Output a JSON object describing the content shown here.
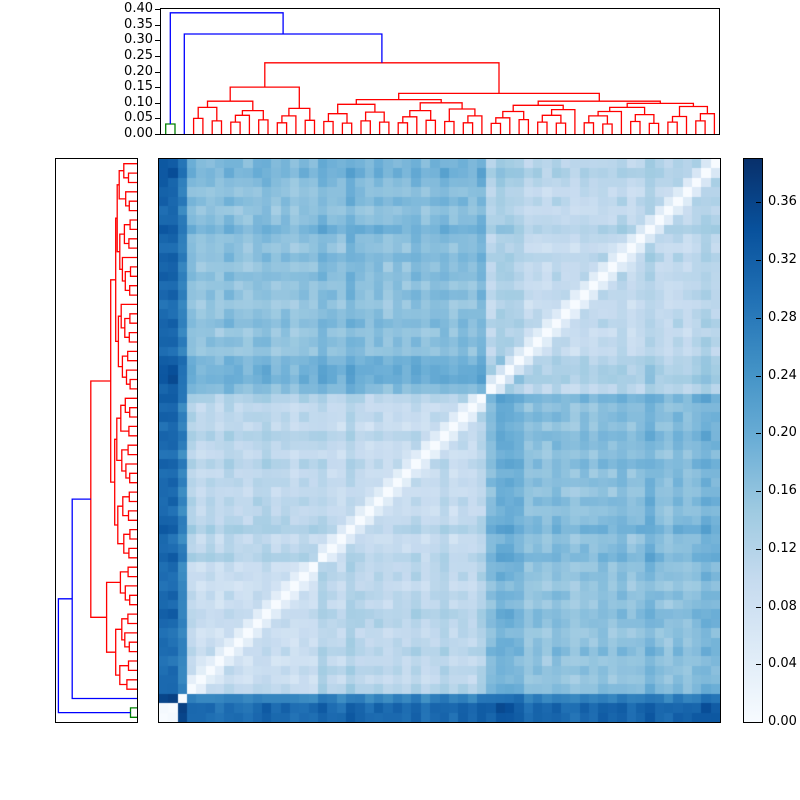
{
  "figure": {
    "background": "#ffffff",
    "frame_color": "#000000"
  },
  "top_dendrogram": {
    "axis_ticks": [
      {
        "label": "0.40",
        "value": 0.4
      },
      {
        "label": "0.35",
        "value": 0.35
      },
      {
        "label": "0.30",
        "value": 0.3
      },
      {
        "label": "0.25",
        "value": 0.25
      },
      {
        "label": "0.20",
        "value": 0.2
      },
      {
        "label": "0.15",
        "value": 0.15
      },
      {
        "label": "0.10",
        "value": 0.1
      },
      {
        "label": "0.05",
        "value": 0.05
      },
      {
        "label": "0.00",
        "value": 0.0
      }
    ],
    "axis_max": 0.4
  },
  "left_dendrogram": {
    "axis_max": 0.4,
    "axis_ticks_visible": false
  },
  "colorbar": {
    "vmin": 0.0,
    "vmax": 0.39,
    "colormap": "Blues",
    "ticks": [
      {
        "label": "0.36",
        "value": 0.36
      },
      {
        "label": "0.32",
        "value": 0.32
      },
      {
        "label": "0.28",
        "value": 0.28
      },
      {
        "label": "0.24",
        "value": 0.24
      },
      {
        "label": "0.20",
        "value": 0.2
      },
      {
        "label": "0.16",
        "value": 0.16
      },
      {
        "label": "0.12",
        "value": 0.12
      },
      {
        "label": "0.08",
        "value": 0.08
      },
      {
        "label": "0.04",
        "value": 0.04
      },
      {
        "label": "0.00",
        "value": 0.0
      }
    ]
  },
  "chart_data": {
    "type": "heatmap",
    "subtype": "hierarchical-clustering-distance-matrix",
    "n_leaves": 60,
    "diagonal": "zero, displayed bottom-left to top-right (origin lower)",
    "link_colors": {
      "r": "#ff0000",
      "g": "#008000",
      "b": "#0000ff"
    },
    "linkage": [
      [
        0,
        1,
        0.032,
        "g"
      ],
      [
        3,
        4,
        0.05,
        "r"
      ],
      [
        5,
        6,
        0.042,
        "r"
      ],
      [
        61,
        62,
        0.085,
        "r"
      ],
      [
        7,
        8,
        0.038,
        "r"
      ],
      [
        9,
        64,
        0.06,
        "r"
      ],
      [
        10,
        11,
        0.045,
        "r"
      ],
      [
        65,
        66,
        0.075,
        "r"
      ],
      [
        63,
        67,
        0.105,
        "r"
      ],
      [
        12,
        13,
        0.036,
        "r"
      ],
      [
        14,
        69,
        0.058,
        "r"
      ],
      [
        15,
        16,
        0.044,
        "r"
      ],
      [
        70,
        71,
        0.082,
        "r"
      ],
      [
        68,
        72,
        0.15,
        "r"
      ],
      [
        17,
        18,
        0.04,
        "r"
      ],
      [
        19,
        20,
        0.035,
        "r"
      ],
      [
        74,
        75,
        0.065,
        "r"
      ],
      [
        21,
        22,
        0.042,
        "r"
      ],
      [
        23,
        24,
        0.038,
        "r"
      ],
      [
        77,
        78,
        0.07,
        "r"
      ],
      [
        76,
        79,
        0.095,
        "r"
      ],
      [
        25,
        26,
        0.036,
        "r"
      ],
      [
        27,
        81,
        0.055,
        "r"
      ],
      [
        28,
        29,
        0.044,
        "r"
      ],
      [
        82,
        83,
        0.075,
        "r"
      ],
      [
        30,
        31,
        0.04,
        "r"
      ],
      [
        32,
        33,
        0.036,
        "r"
      ],
      [
        34,
        86,
        0.058,
        "r"
      ],
      [
        85,
        87,
        0.08,
        "r"
      ],
      [
        84,
        88,
        0.1,
        "r"
      ],
      [
        80,
        89,
        0.11,
        "r"
      ],
      [
        35,
        36,
        0.034,
        "r"
      ],
      [
        37,
        91,
        0.052,
        "r"
      ],
      [
        38,
        39,
        0.046,
        "r"
      ],
      [
        92,
        93,
        0.072,
        "r"
      ],
      [
        40,
        41,
        0.038,
        "r"
      ],
      [
        42,
        43,
        0.035,
        "r"
      ],
      [
        95,
        96,
        0.06,
        "r"
      ],
      [
        44,
        97,
        0.078,
        "r"
      ],
      [
        94,
        98,
        0.092,
        "r"
      ],
      [
        45,
        46,
        0.036,
        "r"
      ],
      [
        47,
        48,
        0.032,
        "r"
      ],
      [
        100,
        101,
        0.058,
        "r"
      ],
      [
        49,
        102,
        0.072,
        "r"
      ],
      [
        50,
        51,
        0.04,
        "r"
      ],
      [
        52,
        53,
        0.034,
        "r"
      ],
      [
        104,
        105,
        0.062,
        "r"
      ],
      [
        103,
        106,
        0.085,
        "r"
      ],
      [
        54,
        55,
        0.038,
        "r"
      ],
      [
        56,
        108,
        0.056,
        "r"
      ],
      [
        57,
        58,
        0.042,
        "r"
      ],
      [
        59,
        110,
        0.065,
        "r"
      ],
      [
        109,
        111,
        0.088,
        "r"
      ],
      [
        107,
        112,
        0.098,
        "r"
      ],
      [
        99,
        113,
        0.105,
        "r"
      ],
      [
        90,
        114,
        0.13,
        "r"
      ],
      [
        73,
        115,
        0.228,
        "r"
      ],
      [
        2,
        116,
        0.32,
        "b"
      ],
      [
        60,
        117,
        0.388,
        "b"
      ]
    ],
    "heatmap_model": {
      "comment": "distance D[i][j] = base(group_i,group_j) + offset_i + offset_j + noise; diag 0",
      "groups": [
        [
          0,
          1,
          "g"
        ],
        [
          2,
          2,
          "s"
        ],
        [
          3,
          16,
          "a1"
        ],
        [
          17,
          34,
          "a2"
        ],
        [
          35,
          59,
          "b"
        ]
      ],
      "base": {
        "g|g": 0.012,
        "g|s": 0.37,
        "g|a1": 0.3,
        "g|a2": 0.3,
        "g|b": 0.305,
        "s|s": 0.0,
        "s|a1": 0.26,
        "s|a2": 0.26,
        "s|b": 0.265,
        "a1|a1": 0.085,
        "a1|a2": 0.105,
        "a1|b": 0.155,
        "a2|a2": 0.09,
        "a2|b": 0.16,
        "b|b": 0.095
      },
      "offsets": [
        0,
        0,
        0,
        0.01,
        -0.005,
        0.004,
        -0.008,
        0.012,
        0,
        -0.006,
        0.008,
        0.015,
        -0.004,
        0.006,
        -0.01,
        0.005,
        -0.002,
        0.018,
        0.004,
        -0.006,
        0.025,
        0.008,
        -0.004,
        0.01,
        -0.008,
        0.006,
        -0.002,
        0.012,
        -0.006,
        0.004,
        0.016,
        -0.004,
        0.008,
        0,
        0.02,
        0.01,
        0.035,
        0.03,
        0.025,
        -0.004,
        0.008,
        -0.006,
        0.012,
        0,
        -0.008,
        0.006,
        -0.004,
        0.01,
        -0.002,
        0.015,
        -0.006,
        0.004,
        0.028,
        0.008,
        -0.004,
        0.01,
        0,
        0.012,
        0.03,
        0.018
      ],
      "noise_amp": 0.013,
      "near_diag_factor": 0.45,
      "vmax": 0.39
    },
    "colormap_anchors": [
      "#f7fbff",
      "#deebf7",
      "#c6dbef",
      "#9ecae1",
      "#6baed6",
      "#4292c6",
      "#2171b5",
      "#08519c",
      "#08306b"
    ]
  }
}
